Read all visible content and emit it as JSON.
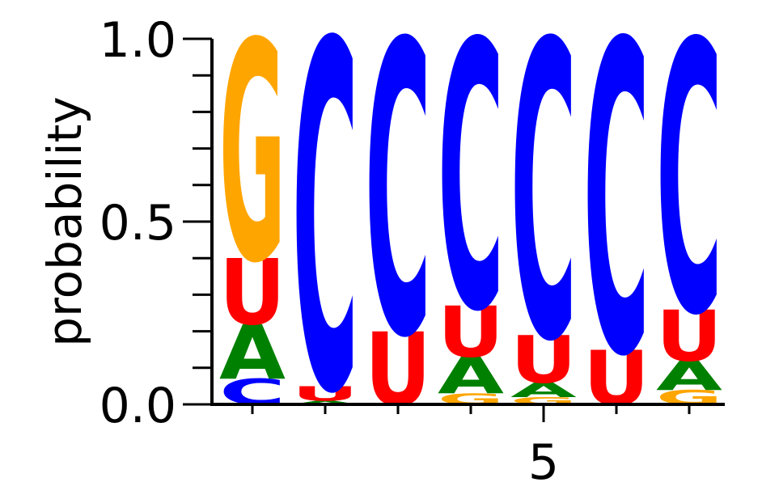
{
  "chart_data": {
    "type": "sequence-logo",
    "ylabel": "probability",
    "ylim": [
      0,
      1.0
    ],
    "y_ticks": [
      {
        "value": 0.0,
        "label": "0.0"
      },
      {
        "value": 0.5,
        "label": "0.5"
      },
      {
        "value": 1.0,
        "label": "1.0"
      }
    ],
    "x_ticks": [
      {
        "value": 5,
        "label": "5"
      }
    ],
    "colors": {
      "A": "#008000",
      "C": "#0000ff",
      "G": "#ffa500",
      "U": "#ff0000"
    },
    "positions": [
      {
        "position": 1,
        "stack": [
          {
            "letter": "C",
            "p": 0.07
          },
          {
            "letter": "A",
            "p": 0.15
          },
          {
            "letter": "U",
            "p": 0.18
          },
          {
            "letter": "G",
            "p": 0.6
          }
        ]
      },
      {
        "position": 2,
        "stack": [
          {
            "letter": "A",
            "p": 0.01
          },
          {
            "letter": "U",
            "p": 0.04
          },
          {
            "letter": "C",
            "p": 0.95
          }
        ]
      },
      {
        "position": 3,
        "stack": [
          {
            "letter": "U",
            "p": 0.2
          },
          {
            "letter": "C",
            "p": 0.8
          }
        ]
      },
      {
        "position": 4,
        "stack": [
          {
            "letter": "G",
            "p": 0.03
          },
          {
            "letter": "A",
            "p": 0.1
          },
          {
            "letter": "U",
            "p": 0.14
          },
          {
            "letter": "C",
            "p": 0.73
          }
        ]
      },
      {
        "position": 5,
        "stack": [
          {
            "letter": "G",
            "p": 0.02
          },
          {
            "letter": "A",
            "p": 0.04
          },
          {
            "letter": "U",
            "p": 0.13
          },
          {
            "letter": "C",
            "p": 0.81
          }
        ]
      },
      {
        "position": 6,
        "stack": [
          {
            "letter": "U",
            "p": 0.15
          },
          {
            "letter": "C",
            "p": 0.85
          }
        ]
      },
      {
        "position": 7,
        "stack": [
          {
            "letter": "G",
            "p": 0.04
          },
          {
            "letter": "A",
            "p": 0.08
          },
          {
            "letter": "U",
            "p": 0.14
          },
          {
            "letter": "C",
            "p": 0.74
          }
        ]
      }
    ]
  }
}
